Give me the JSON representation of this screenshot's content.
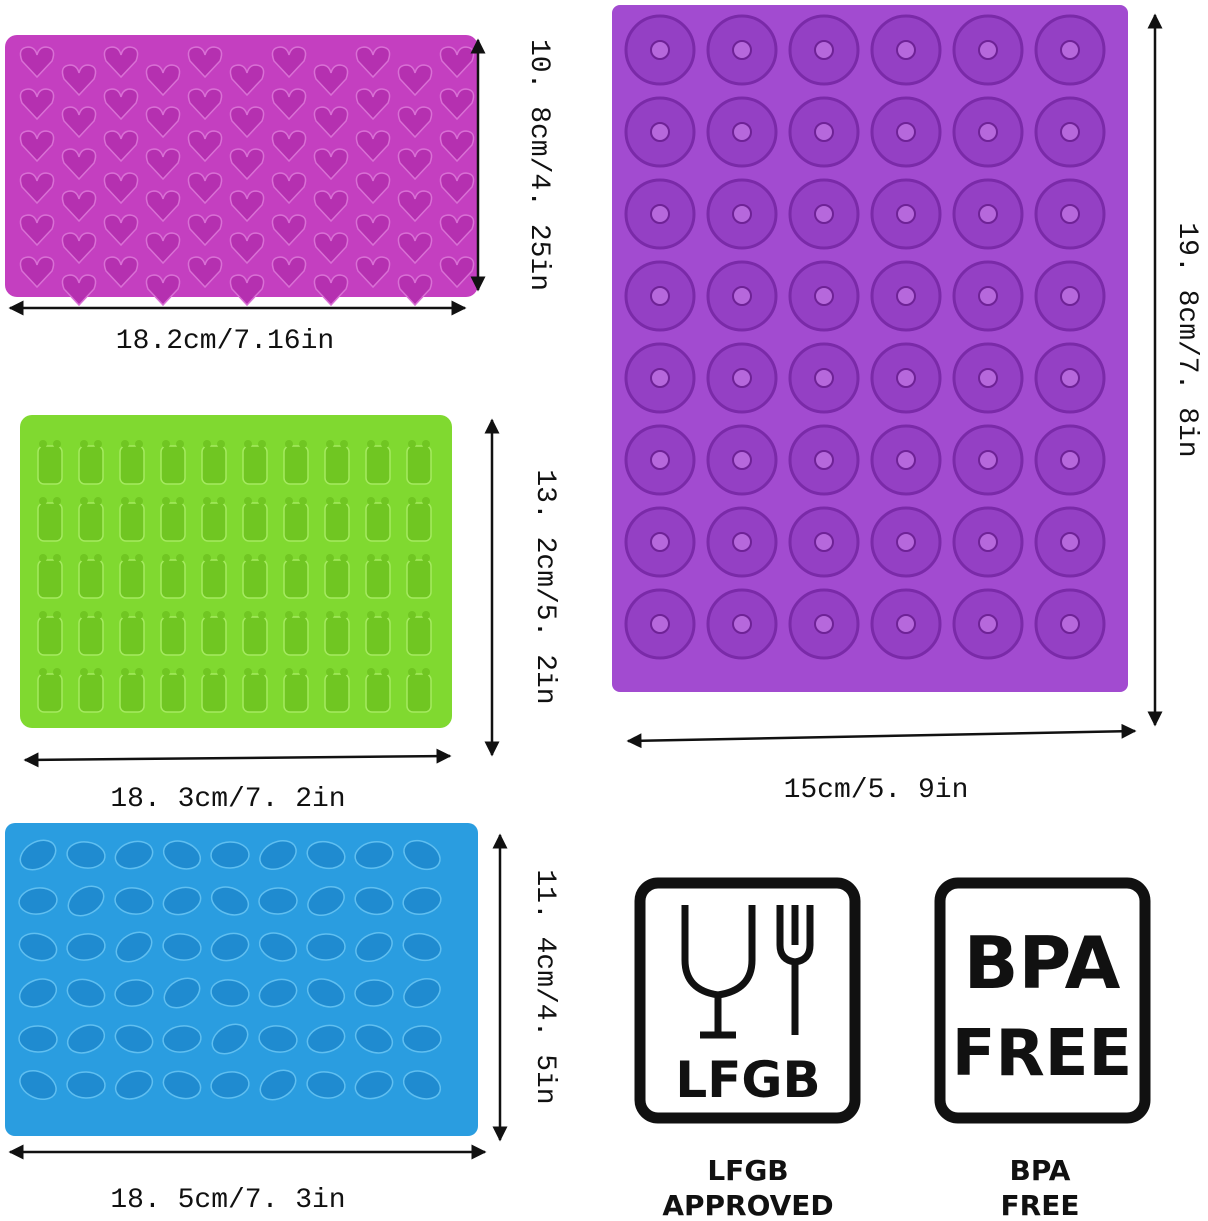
{
  "molds": [
    {
      "width": "18.2cm/7.16in",
      "height": "10. 8cm/4. 25in"
    },
    {
      "width": "18. 3cm/7. 2in",
      "height": "13. 2cm/5. 2in"
    },
    {
      "width": "18. 5cm/7. 3in",
      "height": "11. 4cm/4. 5in"
    },
    {
      "width": "15cm/5. 9in",
      "height": "19. 8cm/7. 8in"
    }
  ],
  "badges": [
    {
      "icon_text": "LFGB",
      "caption": [
        "LFGB",
        "APPROVED"
      ]
    },
    {
      "icon_text": [
        "BPA",
        "FREE"
      ],
      "caption": [
        "BPA",
        "FREE"
      ]
    }
  ]
}
